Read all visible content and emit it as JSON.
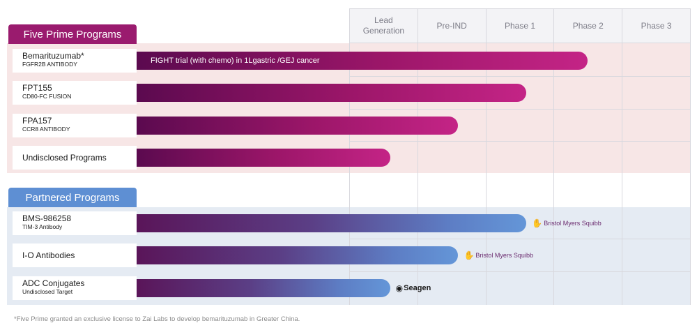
{
  "chart_data": {
    "type": "bar",
    "orientation": "horizontal",
    "stages": [
      "Lead\nGeneration",
      "Pre-IND",
      "Phase 1",
      "Phase 2",
      "Phase 3"
    ],
    "groups": [
      {
        "title": "Five Prime Programs",
        "color": "#9a1b6e",
        "programs": [
          {
            "name": "Bemarituzumab*",
            "subtitle": "FGFR2b ANTIBODY",
            "progress": 3.5,
            "bar_label": "FIGHT trial (with chemo) in 1Lgastric /GEJ cancer",
            "partner": ""
          },
          {
            "name": "FPT155",
            "subtitle": "CD80-Fc FUSION",
            "progress": 2.6,
            "bar_label": "",
            "partner": ""
          },
          {
            "name": "FPA157",
            "subtitle": "CCR8 ANTIBODY",
            "progress": 1.6,
            "bar_label": "",
            "partner": ""
          },
          {
            "name": "Undisclosed Programs",
            "subtitle": "",
            "progress": 0.6,
            "bar_label": "",
            "partner": ""
          }
        ]
      },
      {
        "title": "Partnered Programs",
        "color": "#5e8fd3",
        "programs": [
          {
            "name": "BMS-986258",
            "subtitle": "TIM-3 Antibody",
            "progress": 2.6,
            "bar_label": "",
            "partner": "Bristol Myers Squibb"
          },
          {
            "name": "I-O Antibodies",
            "subtitle": "",
            "progress": 1.6,
            "bar_label": "",
            "partner": "Bristol Myers Squibb"
          },
          {
            "name": "ADC Conjugates",
            "subtitle": "Undisclosed Target",
            "progress": 0.6,
            "bar_label": "",
            "partner": "Seagen"
          }
        ]
      }
    ]
  },
  "footnote": "*Five Prime granted an exclusive license to Zai Labs to develop bemarituzumab in Greater China."
}
